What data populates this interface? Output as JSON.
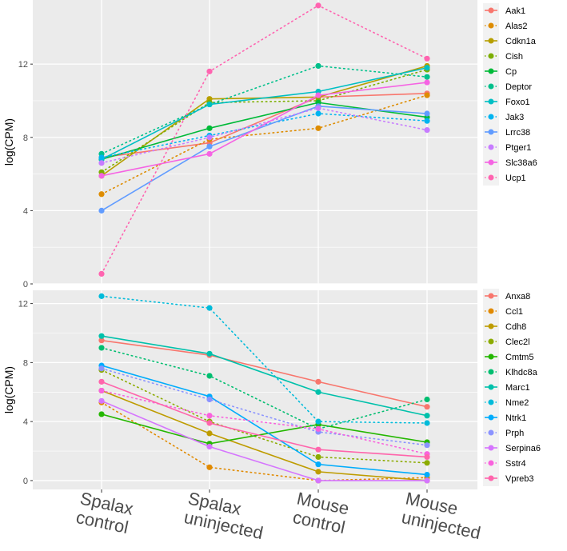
{
  "chart_data": [
    {
      "type": "line",
      "ylabel": "log(CPM)",
      "ylim": [
        0,
        15.5
      ],
      "yticks": [
        0,
        4,
        8,
        12
      ],
      "categories": [
        "Spalax control",
        "Spalax uninjected",
        "Mouse control",
        "Mouse uninjected"
      ],
      "legend_position": "right",
      "grid": true,
      "series": [
        {
          "name": "Aak1",
          "color": "#F8766D",
          "dash": false,
          "values": [
            6.9,
            7.7,
            10.2,
            10.4
          ]
        },
        {
          "name": "Alas2",
          "color": "#DE8C00",
          "dash": true,
          "values": [
            4.9,
            7.9,
            8.5,
            10.3
          ]
        },
        {
          "name": "Cdkn1a",
          "color": "#B79F00",
          "dash": false,
          "values": [
            5.9,
            10.1,
            10.2,
            11.9
          ]
        },
        {
          "name": "Cish",
          "color": "#7CAE00",
          "dash": true,
          "values": [
            6.1,
            9.9,
            10.0,
            11.7
          ]
        },
        {
          "name": "Cp",
          "color": "#00BA38",
          "dash": false,
          "values": [
            6.8,
            8.5,
            9.9,
            9.1
          ]
        },
        {
          "name": "Deptor",
          "color": "#00C08B",
          "dash": true,
          "values": [
            7.1,
            9.8,
            11.9,
            11.3
          ]
        },
        {
          "name": "Foxo1",
          "color": "#00BFC4",
          "dash": false,
          "values": [
            6.8,
            9.8,
            10.5,
            11.8
          ]
        },
        {
          "name": "Jak3",
          "color": "#00B4F0",
          "dash": true,
          "values": [
            6.9,
            8.1,
            9.3,
            8.9
          ]
        },
        {
          "name": "Lrrc38",
          "color": "#619CFF",
          "dash": false,
          "values": [
            4.0,
            7.5,
            9.7,
            9.3
          ]
        },
        {
          "name": "Ptger1",
          "color": "#C77CFF",
          "dash": true,
          "values": [
            6.6,
            8.0,
            9.6,
            8.4
          ]
        },
        {
          "name": "Slc38a6",
          "color": "#F564E3",
          "dash": false,
          "values": [
            5.9,
            7.1,
            10.3,
            11.0
          ]
        },
        {
          "name": "Ucp1",
          "color": "#FF64B0",
          "dash": true,
          "values": [
            0.55,
            11.6,
            15.2,
            12.3
          ]
        }
      ]
    },
    {
      "type": "line",
      "ylabel": "log(CPM)",
      "ylim": [
        -0.6,
        12.9
      ],
      "yticks": [
        0,
        4,
        8,
        12
      ],
      "categories": [
        "Spalax control",
        "Spalax uninjected",
        "Mouse control",
        "Mouse uninjected"
      ],
      "legend_position": "right",
      "grid": true,
      "series": [
        {
          "name": "Anxa8",
          "color": "#F8766D",
          "dash": false,
          "values": [
            9.5,
            8.5,
            6.7,
            5.0
          ]
        },
        {
          "name": "Ccl1",
          "color": "#E18A00",
          "dash": true,
          "values": [
            5.3,
            0.9,
            0.0,
            0.2
          ]
        },
        {
          "name": "Cdh8",
          "color": "#BE9C00",
          "dash": false,
          "values": [
            6.1,
            3.2,
            0.6,
            0.0
          ]
        },
        {
          "name": "Clec2l",
          "color": "#8CAB00",
          "dash": true,
          "values": [
            7.5,
            4.0,
            1.6,
            1.2
          ]
        },
        {
          "name": "Cmtm5",
          "color": "#24B700",
          "dash": false,
          "values": [
            4.5,
            2.5,
            3.8,
            2.6
          ]
        },
        {
          "name": "Klhdc8a",
          "color": "#00BE70",
          "dash": true,
          "values": [
            9.0,
            7.1,
            3.5,
            5.5
          ]
        },
        {
          "name": "Marc1",
          "color": "#00C1AB",
          "dash": false,
          "values": [
            9.8,
            8.6,
            6.0,
            4.4
          ]
        },
        {
          "name": "Nme2",
          "color": "#00BBDA",
          "dash": true,
          "values": [
            12.5,
            11.7,
            4.0,
            3.9
          ]
        },
        {
          "name": "Ntrk1",
          "color": "#00ACFC",
          "dash": false,
          "values": [
            7.8,
            5.7,
            1.1,
            0.4
          ]
        },
        {
          "name": "Prph",
          "color": "#8B93FF",
          "dash": true,
          "values": [
            7.6,
            5.5,
            3.3,
            2.4
          ]
        },
        {
          "name": "Serpina6",
          "color": "#D575FE",
          "dash": false,
          "values": [
            5.4,
            2.3,
            0.0,
            0.0
          ]
        },
        {
          "name": "Sstr4",
          "color": "#F962DD",
          "dash": true,
          "values": [
            6.1,
            4.4,
            3.5,
            1.8
          ]
        },
        {
          "name": "Vpreb3",
          "color": "#FF65AC",
          "dash": false,
          "values": [
            6.7,
            3.9,
            2.1,
            1.6
          ]
        }
      ]
    }
  ]
}
